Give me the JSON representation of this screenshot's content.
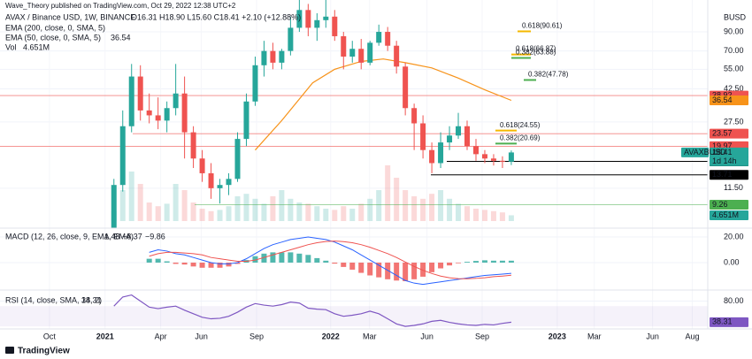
{
  "chart_data": {
    "type": "candlestick",
    "publisher": "Wave_Theory published on TradingView.com, Oct 29, 2022 12:38 UTC+2",
    "symbol": "AVAX / Binance USD, 1W, BINANCE",
    "ohlc_text": "O16.31 H18.90 L15.60 C18.41 +2.10 (+12.88%)",
    "indicators": [
      {
        "name": "EMA (200, close, 0, SMA, 5)"
      },
      {
        "name": "EMA (50, close, 0, SMA, 5)",
        "value": 36.54,
        "color": "#f7931a"
      },
      {
        "name": "Vol",
        "value": 4.651,
        "value_label": "4.651M",
        "color": "#26a69a"
      }
    ],
    "currency": "BUSD",
    "x": [
      2,
      4,
      6,
      8,
      10,
      12,
      14,
      16,
      18,
      20,
      22,
      24,
      26,
      28,
      30,
      32,
      34,
      36,
      38,
      40,
      42,
      44,
      46,
      48,
      50,
      52,
      54,
      56,
      58,
      60,
      62,
      64,
      66,
      68,
      70,
      72,
      74,
      76,
      78,
      80,
      82,
      84,
      86,
      88,
      90,
      92
    ],
    "xlim": [
      -23.8,
      136.5
    ],
    "xticks": [
      {
        "value": -12.6,
        "label": "Oct"
      },
      {
        "value": 0,
        "label": "2021"
      },
      {
        "value": 12.6,
        "label": "Apr"
      },
      {
        "value": 21.8,
        "label": "Jun"
      },
      {
        "value": 34.3,
        "label": "Sep"
      },
      {
        "value": 51.1,
        "label": "2022"
      },
      {
        "value": 59.9,
        "label": "Mar"
      },
      {
        "value": 72.9,
        "label": "Jun"
      },
      {
        "value": 85.4,
        "label": "Sep"
      },
      {
        "value": 102.4,
        "label": "2023"
      },
      {
        "value": 110.8,
        "label": "Mar"
      },
      {
        "value": 124,
        "label": "Jun"
      },
      {
        "value": 133,
        "label": "Aug"
      }
    ],
    "open": [
      5,
      12,
      26,
      50,
      32,
      30,
      28,
      33,
      40,
      24,
      17,
      14,
      11.5,
      12,
      13,
      22,
      36,
      58,
      70,
      60,
      70,
      95,
      120,
      95,
      105,
      110,
      85,
      65,
      72,
      60,
      78,
      90,
      75,
      57,
      33,
      27,
      19,
      16,
      21,
      23,
      26,
      20,
      18,
      17,
      16.5,
      16.31
    ],
    "high": [
      13,
      32,
      59,
      58,
      40,
      38,
      36,
      59,
      50,
      26,
      19,
      16,
      13,
      14,
      24,
      40,
      65,
      80,
      78,
      72,
      110,
      146,
      130,
      115,
      140,
      120,
      90,
      80,
      82,
      80,
      99,
      96,
      80,
      60,
      35,
      30,
      21,
      24,
      26,
      31,
      28,
      22,
      19,
      18,
      17.5,
      18.9
    ],
    "low": [
      4.8,
      11,
      24,
      28,
      27,
      25,
      24,
      30,
      17,
      15,
      12.5,
      10,
      9.4,
      10.5,
      12.5,
      20,
      34,
      50,
      55,
      55,
      66,
      90,
      85,
      80,
      95,
      80,
      55,
      60,
      55,
      58,
      75,
      70,
      52,
      30,
      19,
      17,
      14,
      15,
      19,
      22,
      19,
      16.5,
      16,
      15.5,
      15,
      15.6
    ],
    "close": [
      12,
      26,
      50,
      32,
      30,
      28,
      33,
      40,
      24,
      17,
      14,
      11.5,
      12,
      13,
      22,
      36,
      58,
      70,
      60,
      70,
      95,
      120,
      95,
      105,
      110,
      85,
      65,
      72,
      60,
      78,
      90,
      75,
      57,
      33,
      27,
      19,
      16,
      21,
      23,
      26,
      20,
      18,
      17,
      16.5,
      16.3,
      18.41
    ],
    "up_color": "#26a69a",
    "down_color": "#ef5350",
    "log_scale": true,
    "ylim": [
      6.8,
      136.9
    ],
    "yticks": [
      {
        "value": 90,
        "label": "90.00"
      },
      {
        "value": 70,
        "label": "70.00"
      },
      {
        "value": 55,
        "label": "55.00"
      },
      {
        "value": 42.5,
        "label": "42.50"
      },
      {
        "value": 27.5,
        "label": "27.50"
      },
      {
        "value": 11.5,
        "label": "11.50"
      }
    ],
    "ema50": {
      "color": "#f7931a",
      "x": [
        34,
        40,
        47,
        52,
        58,
        63,
        68,
        74,
        80,
        86,
        92
      ],
      "values": [
        19,
        28,
        46,
        55,
        61,
        63,
        60,
        56,
        49,
        42,
        36.54
      ]
    },
    "volume": {
      "ylim": [
        0,
        100
      ],
      "values": [
        8,
        25,
        40,
        30,
        15,
        12,
        14,
        30,
        25,
        15,
        10,
        8,
        9,
        12,
        20,
        22,
        18,
        14,
        20,
        25,
        18,
        15,
        14,
        12,
        10,
        9,
        12,
        10,
        14,
        18,
        25,
        45,
        35,
        25,
        20,
        18,
        22,
        25,
        18,
        14,
        12,
        10,
        9,
        8,
        7,
        4.651
      ]
    },
    "levels": [
      {
        "value": 38.92,
        "color": "#ef5350"
      },
      {
        "value": 23.57,
        "color": "#ef5350"
      },
      {
        "value": 19.97,
        "color": "#ef5350"
      },
      {
        "value": 16.36,
        "color": "#000000"
      },
      {
        "value": 13.71,
        "color": "#000000"
      },
      {
        "value": 9.26,
        "color": "#4caf50"
      }
    ],
    "price_tags": [
      {
        "value": 38.92,
        "color": "#ef5350"
      },
      {
        "value": 36.54,
        "color": "#f7931a"
      },
      {
        "value": 23.57,
        "color": "#ef5350"
      },
      {
        "value": 19.97,
        "color": "#ef5350"
      },
      {
        "value": 18.41,
        "color": "#26a69a"
      },
      {
        "value": 16.36,
        "color": "#000000"
      },
      {
        "value": 13.71,
        "color": "#000000"
      },
      {
        "value": 9.26,
        "color": "#4caf50"
      }
    ],
    "symbol_tag": "AVAXBUSD",
    "countdown": "1d 14h",
    "fibs": [
      {
        "label": "0.618(90.61)",
        "value": 90.61,
        "color": "#f5b800"
      },
      {
        "label": "0.618(66.87)",
        "value": 66.87,
        "color": "#f5b800"
      },
      {
        "label": "0.382(63.88)",
        "value": 63.88,
        "color": "#4caf50"
      },
      {
        "label": "0.382(47.78)",
        "value": 47.78,
        "color": "#4caf50"
      },
      {
        "label": "0.618(24.55)",
        "value": 24.55,
        "color": "#f5b800"
      },
      {
        "label": "0.382(20.69)",
        "value": 20.69,
        "color": "#4caf50"
      }
    ],
    "macd": {
      "title": "MACD (12, 26, close, 9, EMA, EMA)",
      "last": {
        "values": [
          1.48,
          -8.37,
          -9.86
        ],
        "value_labels": [
          "1.48",
          "−8.37",
          "−9.86"
        ],
        "colors": [
          "#26a69a",
          "#2962ff",
          "#ef5350"
        ]
      },
      "ylim": [
        -21.4,
        26.9
      ],
      "yticks": [
        {
          "value": 20,
          "label": "20.00"
        },
        {
          "value": 0,
          "label": "0.00"
        }
      ],
      "series": [
        {
          "name": "MACD",
          "color": "#2962ff",
          "values": [
            null,
            null,
            null,
            null,
            8,
            10,
            9,
            7,
            6,
            4,
            2,
            0,
            -1,
            -1,
            0,
            3,
            7,
            11,
            14,
            16,
            18,
            19,
            20,
            19,
            18,
            16,
            13,
            10,
            6,
            2,
            -2,
            -6,
            -10,
            -14,
            -16,
            -17,
            -16,
            -15,
            -14,
            -13,
            -12,
            -11,
            -10,
            -9.5,
            -9,
            -8.37
          ]
        },
        {
          "name": "Signal",
          "color": "#ef5350",
          "values": [
            null,
            null,
            null,
            null,
            5,
            7,
            8,
            8,
            7.5,
            7,
            6,
            4,
            3,
            2,
            1,
            1,
            2,
            4,
            6,
            8,
            10,
            12,
            14,
            15.5,
            16.5,
            16.8,
            16.4,
            15.5,
            14,
            12,
            9.5,
            7,
            4,
            0.5,
            -3,
            -6,
            -8.5,
            -10.5,
            -11.8,
            -12.5,
            -12.6,
            -12.3,
            -11.8,
            -11,
            -10.5,
            -9.86
          ]
        },
        {
          "name": "Histogram",
          "values": [
            null,
            null,
            null,
            null,
            3,
            3,
            1,
            -1,
            -1.5,
            -3,
            -4,
            -4,
            -4,
            -3,
            -1,
            2,
            5,
            7,
            8,
            8,
            8,
            7,
            6,
            3.5,
            1.5,
            -0.8,
            -3.4,
            -5.5,
            -8,
            -10,
            -11.5,
            -13,
            -14,
            -14.5,
            -13,
            -11,
            -7.5,
            -4.5,
            -2.2,
            -0.5,
            0.6,
            1.3,
            1.8,
            1.5,
            1.5,
            1.48
          ]
        }
      ]
    },
    "rsi": {
      "title": "RSI (14, close, SMA, 14, 2)",
      "color": "#7e57c2",
      "band": [
        30,
        70
      ],
      "ylim": [
        25,
        100
      ],
      "yticks": [
        {
          "value": 80,
          "label": "80.00"
        }
      ],
      "values": [
        70,
        88,
        92,
        80,
        68,
        65,
        68,
        70,
        62,
        55,
        48,
        45,
        46,
        50,
        58,
        68,
        75,
        72,
        70,
        73,
        78,
        76,
        66,
        64,
        63,
        55,
        50,
        52,
        55,
        60,
        55,
        45,
        35,
        30,
        32,
        35,
        40,
        42,
        38,
        35,
        33,
        32,
        34,
        33,
        36,
        38.31
      ]
    },
    "footer": "TradingView"
  }
}
